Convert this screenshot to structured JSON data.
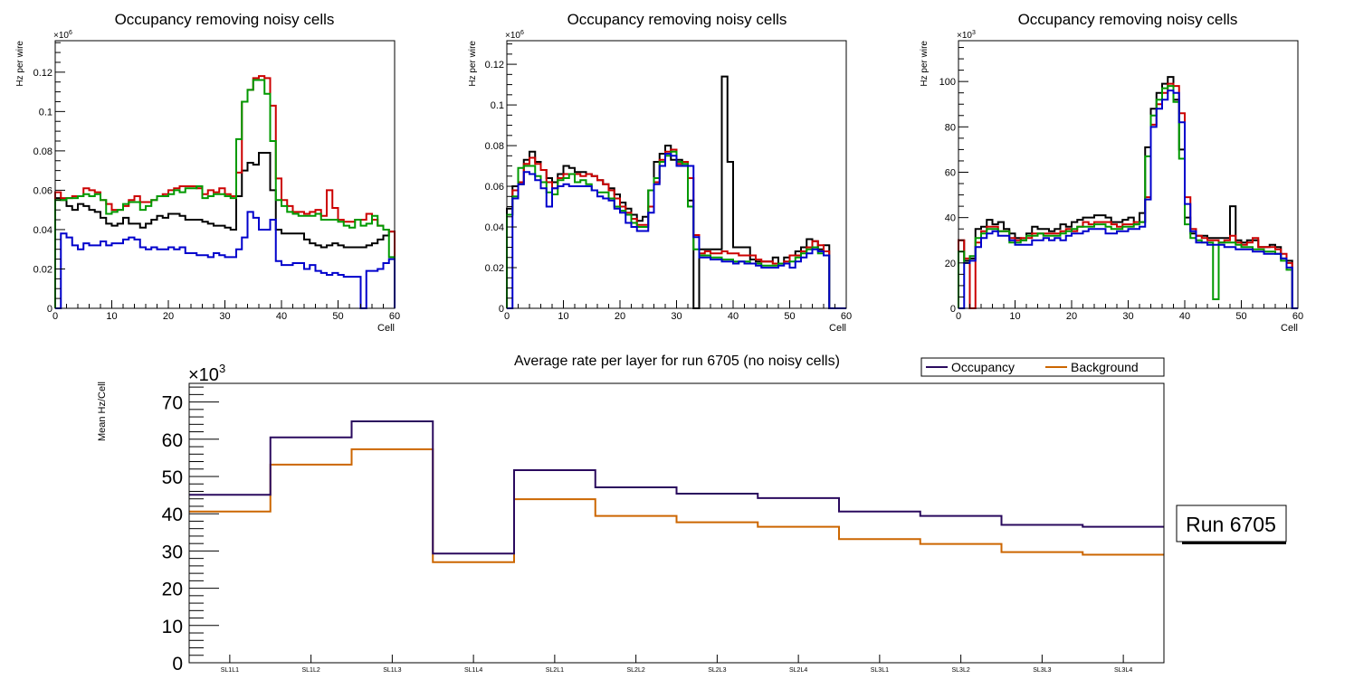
{
  "chart_data": [
    {
      "type": "line",
      "style": "step-histogram",
      "title": "Occupancy removing noisy cells",
      "xlabel": "Cell",
      "ylabel": "Hz per wire",
      "y_multiplier": "×10^6",
      "y_multiplier_base": "×10",
      "y_multiplier_exp": "6",
      "xlim": [
        0,
        60
      ],
      "ylim": [
        0,
        0.136
      ],
      "x_ticks": [
        0,
        10,
        20,
        30,
        40,
        50,
        60
      ],
      "y_ticks": [
        0,
        0.02,
        0.04,
        0.06,
        0.08,
        0.1,
        0.12
      ],
      "y_tick_labels": [
        "0",
        "0.02",
        "0.04",
        "0.06",
        "0.08",
        "0.1",
        "0.12"
      ],
      "bin_width": 1,
      "series": [
        {
          "name": "black",
          "color": "#000000",
          "values": [
            0.056,
            0.055,
            0.052,
            0.05,
            0.053,
            0.052,
            0.05,
            0.049,
            0.046,
            0.043,
            0.042,
            0.043,
            0.046,
            0.043,
            0.043,
            0.041,
            0.043,
            0.045,
            0.047,
            0.046,
            0.048,
            0.048,
            0.047,
            0.045,
            0.045,
            0.045,
            0.044,
            0.043,
            0.042,
            0.042,
            0.041,
            0.04,
            0.057,
            0.07,
            0.074,
            0.073,
            0.079,
            0.079,
            0.06,
            0.04,
            0.038,
            0.038,
            0.038,
            0.038,
            0.035,
            0.033,
            0.032,
            0.031,
            0.032,
            0.033,
            0.032,
            0.031,
            0.031,
            0.031,
            0.031,
            0.032,
            0.033,
            0.035,
            0.037,
            0.039
          ]
        },
        {
          "name": "red",
          "color": "#cc0000",
          "values": [
            0.059,
            0.056,
            0.056,
            0.057,
            0.057,
            0.061,
            0.06,
            0.059,
            0.055,
            0.053,
            0.05,
            0.05,
            0.052,
            0.055,
            0.057,
            0.054,
            0.054,
            0.055,
            0.057,
            0.058,
            0.06,
            0.061,
            0.062,
            0.062,
            0.062,
            0.061,
            0.058,
            0.06,
            0.059,
            0.061,
            0.058,
            0.057,
            0.069,
            0.105,
            0.111,
            0.117,
            0.118,
            0.117,
            0.103,
            0.066,
            0.055,
            0.052,
            0.049,
            0.049,
            0.048,
            0.049,
            0.05,
            0.047,
            0.06,
            0.051,
            0.045,
            0.044,
            0.044,
            0.045,
            0.045,
            0.048,
            0.045,
            0.042,
            0.04,
            0.039
          ]
        },
        {
          "name": "green",
          "color": "#009900",
          "values": [
            0.055,
            0.055,
            0.056,
            0.056,
            0.057,
            0.058,
            0.057,
            0.058,
            0.055,
            0.048,
            0.049,
            0.05,
            0.053,
            0.054,
            0.054,
            0.05,
            0.052,
            0.055,
            0.057,
            0.057,
            0.058,
            0.06,
            0.059,
            0.061,
            0.061,
            0.062,
            0.056,
            0.057,
            0.058,
            0.058,
            0.057,
            0.056,
            0.086,
            0.105,
            0.111,
            0.116,
            0.116,
            0.109,
            0.085,
            0.055,
            0.052,
            0.049,
            0.048,
            0.047,
            0.047,
            0.047,
            0.048,
            0.045,
            0.045,
            0.045,
            0.044,
            0.042,
            0.041,
            0.045,
            0.042,
            0.043,
            0.047,
            0.042,
            0.04,
            0.026
          ]
        },
        {
          "name": "blue",
          "color": "#0000cc",
          "values": [
            0,
            0.038,
            0.036,
            0.032,
            0.03,
            0.033,
            0.032,
            0.032,
            0.034,
            0.032,
            0.033,
            0.033,
            0.035,
            0.036,
            0.035,
            0.031,
            0.03,
            0.031,
            0.03,
            0.03,
            0.031,
            0.03,
            0.031,
            0.028,
            0.028,
            0.027,
            0.027,
            0.026,
            0.028,
            0.027,
            0.026,
            0.026,
            0.03,
            0.036,
            0.049,
            0.046,
            0.04,
            0.04,
            0.045,
            0.024,
            0.022,
            0.022,
            0.023,
            0.023,
            0.02,
            0.022,
            0.019,
            0.018,
            0.017,
            0.018,
            0.017,
            0.016,
            0.016,
            0.016,
            0,
            0.019,
            0.019,
            0.02,
            0.023,
            0.025
          ]
        }
      ]
    },
    {
      "type": "line",
      "style": "step-histogram",
      "title": "Occupancy removing noisy cells",
      "xlabel": "Cell",
      "ylabel": "Hz per wire",
      "y_multiplier": "×10^6",
      "y_multiplier_base": "×10",
      "y_multiplier_exp": "6",
      "xlim": [
        0,
        60
      ],
      "ylim": [
        0,
        0.1316
      ],
      "x_ticks": [
        0,
        10,
        20,
        30,
        40,
        50,
        60
      ],
      "y_ticks": [
        0,
        0.02,
        0.04,
        0.06,
        0.08,
        0.1,
        0.12
      ],
      "y_tick_labels": [
        "0",
        "0.02",
        "0.04",
        "0.06",
        "0.08",
        "0.1",
        "0.12"
      ],
      "bin_width": 1,
      "series": [
        {
          "name": "black",
          "color": "#000000",
          "values": [
            0.049,
            0.06,
            0.061,
            0.073,
            0.077,
            0.072,
            0.068,
            0.064,
            0.062,
            0.066,
            0.07,
            0.069,
            0.067,
            0.067,
            0.066,
            0.065,
            0.063,
            0.061,
            0.059,
            0.056,
            0.052,
            0.049,
            0.046,
            0.043,
            0.045,
            0.058,
            0.072,
            0.076,
            0.08,
            0.073,
            0.073,
            0.072,
            0.053,
            0,
            0.029,
            0.029,
            0.029,
            0.029,
            0.114,
            0.072,
            0.03,
            0.03,
            0.03,
            0.024,
            0.023,
            0.023,
            0.023,
            0.025,
            0.022,
            0.025,
            0.026,
            0.028,
            0.03,
            0.034,
            0.033,
            0.029,
            0.031,
            0,
            0,
            0
          ]
        },
        {
          "name": "red",
          "color": "#cc0000",
          "values": [
            0.046,
            0.058,
            0.062,
            0.071,
            0.074,
            0.071,
            0.068,
            0.062,
            0.059,
            0.064,
            0.066,
            0.066,
            0.066,
            0.065,
            0.066,
            0.065,
            0.063,
            0.061,
            0.058,
            0.054,
            0.05,
            0.047,
            0.044,
            0.041,
            0.041,
            0.05,
            0.062,
            0.073,
            0.077,
            0.078,
            0.071,
            0.072,
            0.064,
            0.036,
            0.027,
            0.028,
            0.027,
            0.027,
            0.028,
            0.027,
            0.027,
            0.026,
            0.026,
            0.026,
            0.024,
            0.023,
            0.023,
            0.022,
            0.022,
            0.023,
            0.026,
            0.026,
            0.028,
            0.03,
            0.033,
            0.031,
            0.028,
            0,
            0,
            0
          ]
        },
        {
          "name": "green",
          "color": "#009900",
          "values": [
            0.046,
            0.055,
            0.069,
            0.07,
            0.07,
            0.065,
            0.062,
            0.057,
            0.056,
            0.063,
            0.064,
            0.066,
            0.062,
            0.063,
            0.061,
            0.058,
            0.057,
            0.057,
            0.054,
            0.05,
            0.048,
            0.046,
            0.042,
            0.04,
            0.04,
            0.058,
            0.064,
            0.072,
            0.075,
            0.077,
            0.072,
            0.071,
            0.05,
            0.029,
            0.026,
            0.026,
            0.025,
            0.025,
            0.024,
            0.024,
            0.023,
            0.023,
            0.023,
            0.022,
            0.022,
            0.021,
            0.021,
            0.021,
            0.022,
            0.022,
            0.023,
            0.025,
            0.027,
            0.029,
            0.03,
            0.027,
            0.026,
            0,
            0,
            0
          ]
        },
        {
          "name": "blue",
          "color": "#0000cc",
          "values": [
            0,
            0.054,
            0.061,
            0.067,
            0.066,
            0.063,
            0.059,
            0.05,
            0.059,
            0.06,
            0.061,
            0.06,
            0.06,
            0.06,
            0.06,
            0.058,
            0.055,
            0.054,
            0.053,
            0.049,
            0.047,
            0.042,
            0.04,
            0.038,
            0.038,
            0.047,
            0.061,
            0.07,
            0.076,
            0.075,
            0.07,
            0.07,
            0.07,
            0.035,
            0.025,
            0.025,
            0.024,
            0.024,
            0.023,
            0.023,
            0.022,
            0.023,
            0.022,
            0.022,
            0.021,
            0.02,
            0.02,
            0.02,
            0.021,
            0.022,
            0.02,
            0.023,
            0.025,
            0.027,
            0.029,
            0.028,
            0.026,
            0,
            0,
            0
          ]
        }
      ]
    },
    {
      "type": "line",
      "style": "step-histogram",
      "title": "Occupancy removing noisy cells",
      "xlabel": "Cell",
      "ylabel": "Hz per wire",
      "y_multiplier": "×10^3",
      "y_multiplier_base": "×10",
      "y_multiplier_exp": "3",
      "xlim": [
        0,
        60
      ],
      "ylim": [
        0,
        118
      ],
      "x_ticks": [
        0,
        10,
        20,
        30,
        40,
        50,
        60
      ],
      "y_ticks": [
        0,
        20,
        40,
        60,
        80,
        100
      ],
      "y_tick_labels": [
        "0",
        "20",
        "40",
        "60",
        "80",
        "100"
      ],
      "bin_width": 1,
      "series": [
        {
          "name": "black",
          "color": "#000000",
          "values": [
            30,
            21,
            22,
            35,
            36,
            39,
            37,
            38,
            35,
            33,
            31,
            30,
            33,
            36,
            35,
            35,
            34,
            35,
            37,
            36,
            38,
            39,
            40,
            40,
            41,
            41,
            40,
            38,
            38,
            39,
            40,
            37,
            42,
            71,
            88,
            95,
            99,
            102,
            92,
            70,
            40,
            33,
            32,
            32,
            31,
            31,
            31,
            31,
            45,
            30,
            29,
            30,
            30,
            27,
            27,
            28,
            27,
            22,
            21,
            0
          ]
        },
        {
          "name": "red",
          "color": "#cc0000",
          "values": [
            30,
            22,
            0,
            29,
            34,
            36,
            36,
            34,
            34,
            31,
            30,
            31,
            31,
            33,
            33,
            33,
            33,
            33,
            34,
            35,
            34,
            36,
            38,
            37,
            38,
            38,
            38,
            37,
            36,
            37,
            37,
            38,
            38,
            49,
            81,
            90,
            95,
            99,
            98,
            86,
            49,
            35,
            32,
            31,
            30,
            30,
            29,
            30,
            32,
            29,
            28,
            29,
            31,
            27,
            27,
            27,
            26,
            24,
            20,
            0
          ]
        },
        {
          "name": "green",
          "color": "#009900",
          "values": [
            25,
            20,
            23,
            31,
            33,
            35,
            35,
            34,
            34,
            29,
            29,
            30,
            32,
            32,
            33,
            32,
            32,
            32,
            33,
            34,
            35,
            36,
            36,
            36,
            37,
            37,
            36,
            35,
            35,
            36,
            36,
            37,
            38,
            67,
            85,
            92,
            97,
            98,
            91,
            66,
            37,
            31,
            30,
            29,
            29,
            4,
            29,
            29,
            29,
            28,
            27,
            27,
            26,
            26,
            25,
            25,
            24,
            21,
            17,
            0
          ]
        },
        {
          "name": "blue",
          "color": "#0000cc",
          "values": [
            0,
            20,
            21,
            27,
            31,
            33,
            34,
            32,
            32,
            30,
            28,
            28,
            28,
            30,
            30,
            31,
            30,
            31,
            30,
            32,
            33,
            33,
            34,
            35,
            35,
            35,
            33,
            33,
            34,
            34,
            35,
            35,
            36,
            48,
            80,
            88,
            92,
            96,
            95,
            82,
            46,
            34,
            29,
            29,
            28,
            28,
            28,
            27,
            27,
            26,
            26,
            26,
            25,
            25,
            24,
            24,
            24,
            22,
            18,
            0
          ]
        }
      ]
    },
    {
      "type": "line",
      "style": "step-histogram",
      "title": "Average rate per layer for run 6705 (no noisy cells)",
      "xlabel": "",
      "ylabel": "Mean Hz/Cell",
      "y_multiplier": "×10^3",
      "y_multiplier_base": "×10",
      "y_multiplier_exp": "3",
      "ylim": [
        0,
        75
      ],
      "y_ticks": [
        0,
        10,
        20,
        30,
        40,
        50,
        60,
        70
      ],
      "y_tick_labels": [
        "0",
        "10",
        "20",
        "30",
        "40",
        "50",
        "60",
        "70"
      ],
      "categories": [
        "SL1L1",
        "SL1L2",
        "SL1L3",
        "SL1L4",
        "SL2L1",
        "SL2L2",
        "SL2L3",
        "SL2L4",
        "SL3L1",
        "SL3L2",
        "SL3L3",
        "SL3L4"
      ],
      "legend": {
        "placement": "top-right",
        "entries": [
          "Occupancy",
          "Background"
        ]
      },
      "series": [
        {
          "name": "Occupancy",
          "color": "#2a0a5e",
          "values": [
            45.1,
            60.5,
            64.8,
            29.3,
            51.7,
            47.1,
            45.4,
            44.2,
            40.6,
            39.4,
            37.0,
            36.5
          ]
        },
        {
          "name": "Background",
          "color": "#cc6600",
          "values": [
            40.6,
            53.2,
            57.3,
            27.0,
            43.9,
            39.4,
            37.7,
            36.5,
            33.2,
            31.9,
            29.7,
            29.0
          ]
        }
      ],
      "annotation": "Run 6705"
    }
  ]
}
